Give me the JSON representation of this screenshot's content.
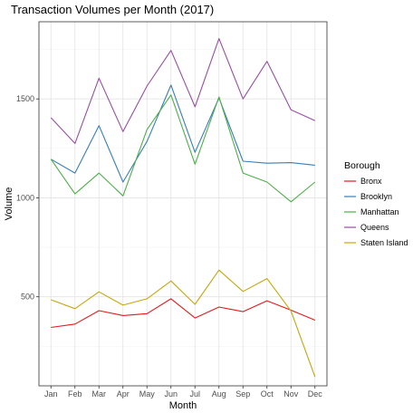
{
  "chart_data": {
    "type": "line",
    "title": "Transaction Volumes per Month (2017)",
    "xlabel": "Month",
    "ylabel": "Volume",
    "categories": [
      "Jan",
      "Feb",
      "Mar",
      "Apr",
      "May",
      "Jun",
      "Jul",
      "Aug",
      "Sep",
      "Oct",
      "Nov",
      "Dec"
    ],
    "ylim": [
      50,
      1890
    ],
    "yticks": [
      500,
      1000,
      1500
    ],
    "grid": true,
    "legend": {
      "title": "Borough",
      "position": "right"
    },
    "series": [
      {
        "name": "Bronx",
        "color": "#e41a1c",
        "values": [
          345,
          362,
          430,
          405,
          415,
          490,
          393,
          448,
          425,
          480,
          432,
          382
        ]
      },
      {
        "name": "Brooklyn",
        "color": "#377eb8",
        "values": [
          1195,
          1125,
          1365,
          1080,
          1285,
          1570,
          1230,
          1505,
          1185,
          1175,
          1178,
          1165
        ]
      },
      {
        "name": "Manhattan",
        "color": "#4daf4a",
        "values": [
          1195,
          1020,
          1125,
          1010,
          1345,
          1520,
          1170,
          1510,
          1125,
          1080,
          980,
          1080
        ]
      },
      {
        "name": "Queens",
        "color": "#984ea3",
        "values": [
          1405,
          1275,
          1605,
          1335,
          1565,
          1745,
          1460,
          1805,
          1500,
          1690,
          1445,
          1390
        ]
      },
      {
        "name": "Staten Island",
        "color": "#c8a50c",
        "values": [
          485,
          440,
          525,
          458,
          490,
          580,
          462,
          635,
          527,
          592,
          428,
          95
        ]
      }
    ]
  }
}
